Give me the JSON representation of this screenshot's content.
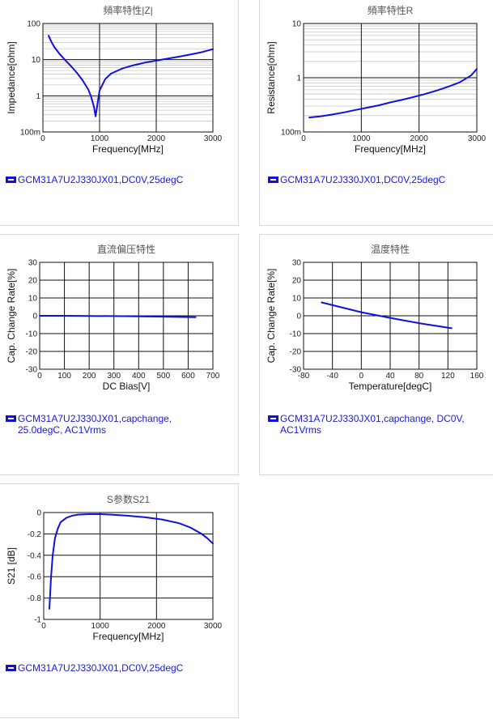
{
  "colors": {
    "series": "#1010e0",
    "grid_major": "#111111",
    "grid_minor": "#c8c8c8"
  },
  "chart_data": [
    {
      "type": "line",
      "title": "頻率特性|Z|",
      "xlabel": "Frequency[MHz]",
      "ylabel": "Impedance[ohm]",
      "xlim": [
        0,
        3000
      ],
      "ylim": [
        0.1,
        100
      ],
      "yscale": "log",
      "xticks": [
        0,
        1000,
        2000,
        3000
      ],
      "xtick_labels": [
        "0",
        "1000",
        "2000",
        "3000"
      ],
      "yticks": [
        0.1,
        1,
        10,
        100
      ],
      "ytick_labels": [
        "100m",
        "1",
        "10",
        "100"
      ],
      "legend": "GCM31A7U2J330JX01,DC0V,25degC",
      "series": [
        {
          "x": [
            100,
            150,
            200,
            300,
            400,
            500,
            600,
            700,
            800,
            850,
            900,
            930,
            960,
            1000,
            1100,
            1200,
            1400,
            1600,
            1800,
            2000,
            2200,
            2400,
            2600,
            2800,
            3000
          ],
          "values": [
            46,
            31,
            22.5,
            14,
            9.5,
            6.5,
            4.3,
            2.7,
            1.5,
            0.95,
            0.5,
            0.27,
            0.55,
            1.4,
            2.9,
            4.1,
            5.7,
            7.0,
            8.3,
            9.4,
            10.7,
            12.1,
            13.8,
            16.0,
            19.5
          ]
        }
      ]
    },
    {
      "type": "line",
      "title": "頻率特性R",
      "xlabel": "Frequency[MHz]",
      "ylabel": "Resistance[ohm]",
      "xlim": [
        0,
        3000
      ],
      "ylim": [
        0.1,
        10
      ],
      "yscale": "log",
      "xticks": [
        0,
        1000,
        2000,
        3000
      ],
      "xtick_labels": [
        "0",
        "1000",
        "2000",
        "3000"
      ],
      "yticks": [
        0.1,
        1,
        10
      ],
      "ytick_labels": [
        "100m",
        "1",
        "10"
      ],
      "legend": "GCM31A7U2J330JX01,DC0V,25degC",
      "series": [
        {
          "x": [
            100,
            300,
            500,
            700,
            900,
            1100,
            1300,
            1500,
            1700,
            1900,
            2100,
            2300,
            2500,
            2700,
            2900,
            3000
          ],
          "values": [
            0.185,
            0.195,
            0.21,
            0.23,
            0.255,
            0.28,
            0.31,
            0.35,
            0.39,
            0.44,
            0.5,
            0.58,
            0.68,
            0.82,
            1.1,
            1.45
          ]
        }
      ]
    },
    {
      "type": "line",
      "title": "直流偏压特性",
      "xlabel": "DC Bias[V]",
      "ylabel": "Cap. Change Rate[%]",
      "xlim": [
        0,
        700
      ],
      "ylim": [
        -30,
        30
      ],
      "xticks": [
        0,
        100,
        200,
        300,
        400,
        500,
        600,
        700
      ],
      "xtick_labels": [
        "0",
        "100",
        "200",
        "300",
        "400",
        "500",
        "600",
        "700"
      ],
      "yticks": [
        -30,
        -20,
        -10,
        0,
        10,
        20,
        30
      ],
      "ytick_labels": [
        "-30",
        "-20",
        "-10",
        "0",
        "10",
        "20",
        "30"
      ],
      "legend": "GCM31A7U2J330JX01,capchange, 25.0degC, AC1Vrms",
      "series": [
        {
          "x": [
            0,
            100,
            200,
            300,
            400,
            500,
            630
          ],
          "values": [
            0,
            0,
            -0.1,
            -0.2,
            -0.3,
            -0.5,
            -0.8
          ]
        }
      ]
    },
    {
      "type": "line",
      "title": "温度特性",
      "xlabel": "Temperature[degC]",
      "ylabel": "Cap. Change Rate[%]",
      "xlim": [
        -80,
        160
      ],
      "ylim": [
        -30,
        30
      ],
      "xticks": [
        -80,
        -40,
        0,
        40,
        80,
        120,
        160
      ],
      "xtick_labels": [
        "-80",
        "-40",
        "0",
        "40",
        "80",
        "120",
        "160"
      ],
      "yticks": [
        -30,
        -20,
        -10,
        0,
        10,
        20,
        30
      ],
      "ytick_labels": [
        "-30",
        "-20",
        "-10",
        "0",
        "10",
        "20",
        "30"
      ],
      "legend": "GCM31A7U2J330JX01,capchange, DC0V, AC1Vrms",
      "series": [
        {
          "x": [
            -55,
            -25,
            0,
            25,
            55,
            85,
            125
          ],
          "values": [
            7.5,
            4.5,
            2.0,
            0,
            -2.3,
            -4.5,
            -7.0
          ]
        }
      ]
    },
    {
      "type": "line",
      "title": "S参数S21",
      "xlabel": "Frequency[MHz]",
      "ylabel": "S21 [dB]",
      "xlim": [
        0,
        3000
      ],
      "ylim": [
        -1,
        0
      ],
      "xticks": [
        0,
        1000,
        2000,
        3000
      ],
      "xtick_labels": [
        "0",
        "1000",
        "2000",
        "3000"
      ],
      "yticks": [
        -1,
        -0.8,
        -0.6,
        -0.4,
        -0.2,
        0
      ],
      "ytick_labels": [
        "-1",
        "-0.8",
        "-0.6",
        "-0.4",
        "-0.2",
        "0"
      ],
      "legend": "GCM31A7U2J330JX01,DC0V,25degC",
      "series": [
        {
          "x": [
            100,
            130,
            160,
            200,
            250,
            300,
            400,
            500,
            600,
            800,
            1000,
            1200,
            1500,
            1800,
            2100,
            2400,
            2600,
            2800,
            2900,
            3000
          ],
          "values": [
            -0.9,
            -0.6,
            -0.4,
            -0.24,
            -0.15,
            -0.09,
            -0.05,
            -0.03,
            -0.02,
            -0.015,
            -0.015,
            -0.02,
            -0.03,
            -0.045,
            -0.065,
            -0.1,
            -0.14,
            -0.2,
            -0.24,
            -0.29
          ]
        }
      ]
    }
  ]
}
